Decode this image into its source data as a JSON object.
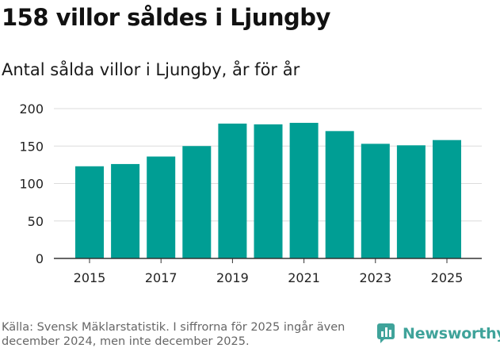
{
  "header": {
    "title": "158 villor såldes i Ljungby",
    "subtitle": "Antal sålda villor i Ljungby, år för år"
  },
  "footer": {
    "source": "Källa: Svensk Mäklarstatistik. I siffrorna för 2025 ingår även december 2024, men inte december 2025.",
    "brand": "Newsworthy",
    "brand_icon": "bar-chart-logo-icon",
    "brand_color": "#3fa39a"
  },
  "chart_data": {
    "type": "bar",
    "categories": [
      2015,
      2016,
      2017,
      2018,
      2019,
      2020,
      2021,
      2022,
      2023,
      2024,
      2025
    ],
    "values": [
      123,
      126,
      136,
      150,
      180,
      179,
      181,
      170,
      153,
      151,
      158
    ],
    "x_tick_labels": [
      "2015",
      "2017",
      "2019",
      "2021",
      "2023",
      "2025"
    ],
    "y_ticks": [
      0,
      50,
      100,
      150,
      200
    ],
    "ylim": [
      0,
      200
    ],
    "grid": true,
    "bar_color": "#009e94",
    "xlabel": "",
    "ylabel": ""
  }
}
